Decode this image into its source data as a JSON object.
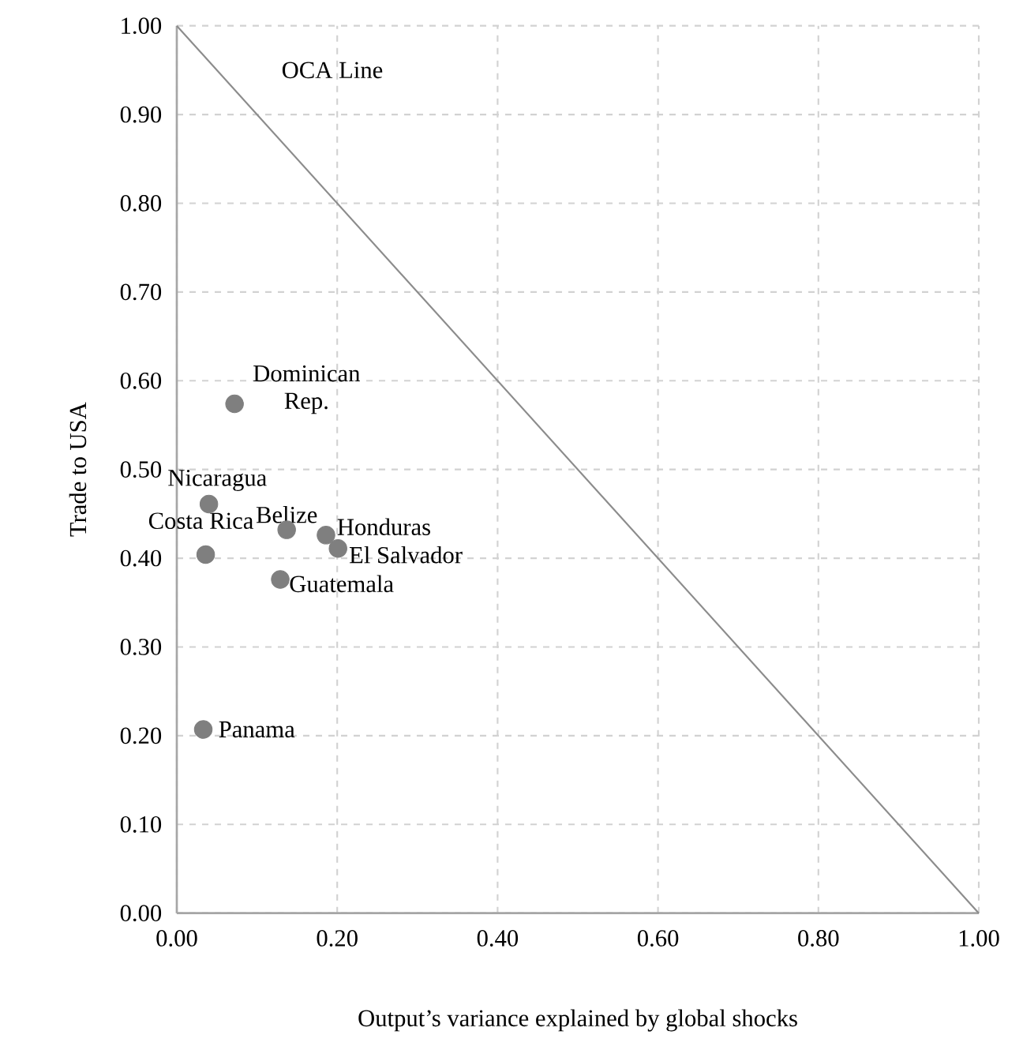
{
  "chart_data": {
    "type": "scatter",
    "xlabel": "Output’s variance explained by global shocks",
    "ylabel": "Trade to USA",
    "x": [
      0.072,
      0.04,
      0.137,
      0.036,
      0.186,
      0.201,
      0.129,
      0.033
    ],
    "series": [
      {
        "color": "#7f7f7f",
        "marker": "circle",
        "values": [
          0.574,
          0.461,
          0.432,
          0.404,
          0.426,
          0.411,
          0.376,
          0.207
        ]
      },
      {
        "type": "line",
        "name": "OCA Line",
        "color": "#8c8c8c",
        "marker": "none",
        "x": [
          0,
          1
        ],
        "values": [
          1,
          0
        ]
      }
    ],
    "annotations": [
      {
        "text": "Dominican Rep.",
        "x": 0.072,
        "y": 0.574
      },
      {
        "text": "Nicaragua",
        "x": 0.04,
        "y": 0.461
      },
      {
        "text": "Belize",
        "x": 0.137,
        "y": 0.432
      },
      {
        "text": "Costa Rica",
        "x": 0.036,
        "y": 0.404
      },
      {
        "text": "Honduras",
        "x": 0.186,
        "y": 0.426
      },
      {
        "text": "El Salvador",
        "x": 0.201,
        "y": 0.411
      },
      {
        "text": "Guatemala",
        "x": 0.129,
        "y": 0.376
      },
      {
        "text": "Panama",
        "x": 0.033,
        "y": 0.207
      }
    ],
    "xlim": [
      0,
      1
    ],
    "ylim": [
      0,
      1
    ],
    "xticks": [
      {
        "value": 0,
        "label": "0.00"
      },
      {
        "value": 0.2,
        "label": "0.20"
      },
      {
        "value": 0.4,
        "label": "0.40"
      },
      {
        "value": 0.6,
        "label": "0.60"
      },
      {
        "value": 0.8,
        "label": "0.80"
      },
      {
        "value": 1,
        "label": "1.00"
      }
    ],
    "yticks": [
      {
        "value": 0,
        "label": "0.00"
      },
      {
        "value": 0.1,
        "label": "0.10"
      },
      {
        "value": 0.2,
        "label": "0.20"
      },
      {
        "value": 0.3,
        "label": "0.30"
      },
      {
        "value": 0.4,
        "label": "0.40"
      },
      {
        "value": 0.5,
        "label": "0.50"
      },
      {
        "value": 0.6,
        "label": "0.60"
      },
      {
        "value": 0.7,
        "label": "0.70"
      },
      {
        "value": 0.8,
        "label": "0.80"
      },
      {
        "value": 0.9,
        "label": "0.90"
      },
      {
        "value": 1,
        "label": "1.00"
      }
    ],
    "grid": true
  }
}
